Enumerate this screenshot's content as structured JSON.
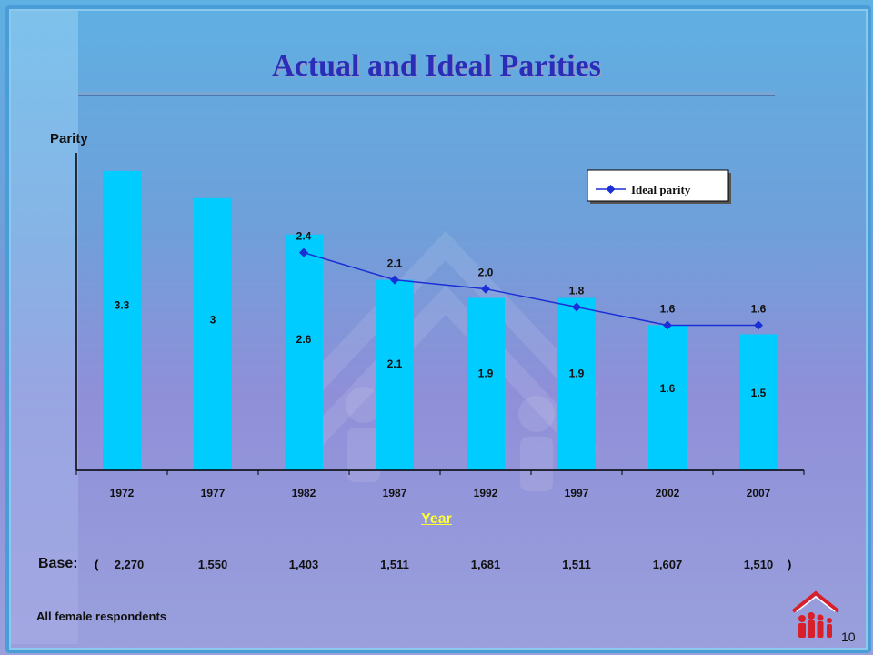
{
  "title": "Actual and Ideal Parities",
  "chart_data": {
    "type": "bar",
    "categories": [
      "1972",
      "1977",
      "1982",
      "1987",
      "1992",
      "1997",
      "2002",
      "2007"
    ],
    "series": [
      {
        "type": "bar",
        "values": [
          3.3,
          3,
          2.6,
          2.1,
          1.9,
          1.9,
          1.6,
          1.5
        ],
        "labels": [
          "3.3",
          "3",
          "2.6",
          "2.1",
          "1.9",
          "1.9",
          "1.6",
          "1.5"
        ],
        "color": "#00ccff"
      },
      {
        "name": "Ideal parity",
        "type": "line",
        "values": [
          null,
          null,
          2.4,
          2.1,
          2.0,
          1.8,
          1.6,
          1.6
        ],
        "labels": [
          "",
          "",
          "2.4",
          "2.1",
          "2.0",
          "1.8",
          "1.6",
          "1.6"
        ],
        "color": "#1a2fd6"
      }
    ],
    "ylabel": "Parity",
    "xlabel": "Year",
    "legend_position": "top-right",
    "grid": false
  },
  "base": {
    "label": "Base:",
    "open": "(",
    "close": ")",
    "values": [
      "2,270",
      "1,550",
      "1,403",
      "1,511",
      "1,681",
      "1,511",
      "1,607",
      "1,510"
    ]
  },
  "note": "All female respondents",
  "page_number": "10",
  "colors": {
    "bar": "#00ccff",
    "line": "#1a2fd6",
    "title": "#2a2db8",
    "year_label": "#ffff33"
  }
}
